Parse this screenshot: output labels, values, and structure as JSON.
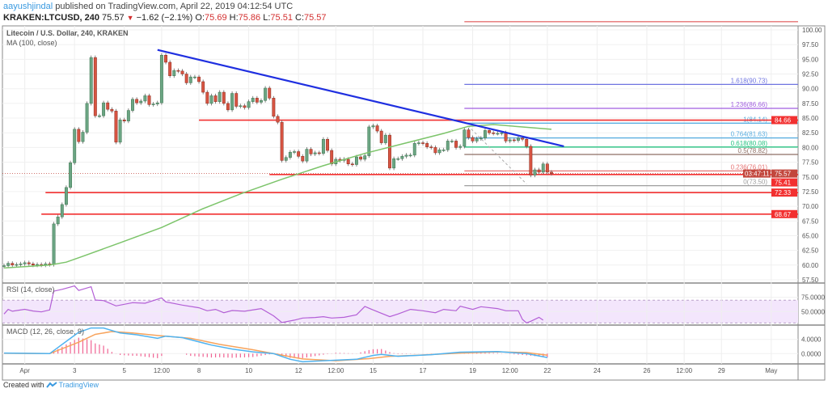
{
  "header": {
    "user": "aayushjindal",
    "published": " published on TradingView.com, April 22, 2019 04:12:54 UTC",
    "symbol": "KRAKEN:LTCUSD, 240",
    "last": "75.57",
    "change": "−1.62 (−2.1%)",
    "o_label": "O:",
    "o": "75.69",
    "h_label": "H:",
    "h": "75.86",
    "l_label": "L:",
    "l": "75.51",
    "c_label": "C:",
    "c": "75.57"
  },
  "footer": {
    "created_with": "Created with",
    "brand": "TradingView"
  },
  "colors": {
    "up": "#6ba583",
    "down": "#d75442",
    "ma": "#7cc46a",
    "trend": "#1f2fe0",
    "support": "#f23030",
    "rsi": "#b35fd6",
    "macd": "#4fb3f0",
    "signal": "#f7a35c",
    "hist": "#f06292"
  },
  "chart_data": {
    "type": "candlestick",
    "title": "Litecoin / U.S. Dollar, 240, KRAKEN",
    "indicator_label": "MA (100, close)",
    "start": "2019-03-31T04:00:00Z",
    "interval_hours": 4,
    "ylim": [
      57.5,
      100
    ],
    "y_ticks": [
      "100.00",
      "97.50",
      "95.00",
      "92.50",
      "90.00",
      "87.50",
      "85.00",
      "82.50",
      "80.00",
      "77.50",
      "75.00",
      "72.50",
      "70.00",
      "67.50",
      "65.00",
      "62.50",
      "60.00",
      "57.50"
    ],
    "x_ticks": [
      {
        "label": "Apr",
        "t": "2019-04-01T00:00:00Z"
      },
      {
        "label": "3",
        "t": "2019-04-03T00:00:00Z"
      },
      {
        "label": "5",
        "t": "2019-04-05T00:00:00Z"
      },
      {
        "label": "12:00",
        "t": "2019-04-06T12:00:00Z"
      },
      {
        "label": "8",
        "t": "2019-04-08T00:00:00Z"
      },
      {
        "label": "10",
        "t": "2019-04-10T00:00:00Z"
      },
      {
        "label": "12",
        "t": "2019-04-12T00:00:00Z"
      },
      {
        "label": "12:00",
        "t": "2019-04-13T12:00:00Z"
      },
      {
        "label": "15",
        "t": "2019-04-15T00:00:00Z"
      },
      {
        "label": "17",
        "t": "2019-04-17T00:00:00Z"
      },
      {
        "label": "19",
        "t": "2019-04-19T00:00:00Z"
      },
      {
        "label": "12:00",
        "t": "2019-04-20T12:00:00Z"
      },
      {
        "label": "22",
        "t": "2019-04-22T00:00:00Z"
      },
      {
        "label": "24",
        "t": "2019-04-24T00:00:00Z"
      },
      {
        "label": "26",
        "t": "2019-04-26T00:00:00Z"
      },
      {
        "label": "12:00",
        "t": "2019-04-27T12:00:00Z"
      },
      {
        "label": "29",
        "t": "2019-04-29T00:00:00Z"
      },
      {
        "label": "May",
        "t": "2019-05-01T00:00:00Z"
      }
    ],
    "close": [
      59.9,
      60.3,
      60.0,
      60.1,
      60.2,
      60.4,
      60.2,
      60.0,
      60.1,
      60.0,
      60.2,
      60.1,
      67.0,
      68.2,
      70.3,
      73.2,
      77.4,
      83.1,
      81.0,
      82.6,
      87.5,
      95.3,
      85.4,
      85.4,
      87.6,
      86.5,
      86.2,
      80.9,
      84.7,
      84.5,
      86.3,
      88.2,
      87.6,
      87.9,
      88.8,
      87.3,
      87.4,
      87.6,
      95.7,
      94.5,
      92.2,
      93.1,
      93.0,
      92.5,
      91.0,
      92.0,
      92.0,
      91.2,
      89.4,
      87.5,
      88.8,
      87.8,
      89.4,
      87.5,
      86.4,
      89.2,
      87.0,
      87.1,
      86.8,
      87.8,
      88.4,
      87.7,
      88.0,
      90.1,
      88.4,
      85.3,
      84.3,
      77.8,
      78.3,
      79.2,
      79.3,
      78.5,
      77.7,
      79.7,
      78.9,
      79.1,
      79.0,
      81.4,
      79.5,
      77.2,
      78.0,
      77.8,
      78.0,
      77.2,
      77.1,
      78.4,
      78.0,
      78.6,
      83.5,
      83.7,
      82.8,
      80.8,
      82.1,
      76.5,
      78.1,
      78.1,
      78.5,
      78.7,
      78.7,
      80.7,
      80.8,
      80.7,
      80.1,
      80.0,
      79.1,
      79.6,
      79.6,
      81.1,
      81.1,
      80.0,
      80.2,
      83.0,
      81.7,
      81.1,
      81.5,
      81.6,
      82.9,
      82.5,
      82.4,
      82.4,
      82.5,
      81.1,
      81.3,
      81.2,
      81.6,
      81.4,
      80.2,
      75.3,
      76.2,
      75.8,
      77.2,
      75.8,
      75.57
    ],
    "ma100": [
      [
        0,
        59.5
      ],
      [
        11,
        60.0
      ],
      [
        15,
        60.5
      ],
      [
        19,
        61.5
      ],
      [
        28,
        63.8
      ],
      [
        38,
        66.4
      ],
      [
        48,
        69.6
      ],
      [
        57,
        72.1
      ],
      [
        67,
        74.6
      ],
      [
        77,
        76.9
      ],
      [
        87,
        79.0
      ],
      [
        96,
        80.6
      ],
      [
        106,
        82.4
      ],
      [
        112,
        83.6
      ],
      [
        118,
        83.9
      ],
      [
        125,
        83.5
      ],
      [
        132,
        83.1
      ]
    ],
    "trendline": [
      [
        37,
        96.6
      ],
      [
        135,
        80.2
      ]
    ],
    "horizontal_lines": [
      {
        "value": 84.66,
        "label": "84.66",
        "from": 47
      },
      {
        "value": 75.41,
        "label": "75.41",
        "from": 64
      },
      {
        "value": 72.33,
        "label": "72.33",
        "from": 10
      },
      {
        "value": 68.67,
        "label": "68.67",
        "from": 9
      }
    ],
    "last_price": {
      "value": 75.57,
      "label": "75.57",
      "countdown": "03:47:11"
    },
    "fibonacci": {
      "from": 111,
      "diagonal": [
        [
          111,
          84.3
        ],
        [
          126,
          73.8
        ]
      ],
      "levels": [
        {
          "label": "0(73.50)",
          "value": 73.5,
          "color": "#9e9e9e"
        },
        {
          "label": "0.236(76.01)",
          "value": 76.01,
          "color": "#e57373"
        },
        {
          "label": "0.5(78.82)",
          "value": 78.82,
          "color": "#8d6e63"
        },
        {
          "label": "0.618(80.08)",
          "value": 80.08,
          "color": "#26c281"
        },
        {
          "label": "0.764(81.63)",
          "value": 81.63,
          "color": "#5aaee0"
        },
        {
          "label": "1(84.14)",
          "value": 84.14,
          "color": "#5aaee0"
        },
        {
          "label": "1.236(86.66)",
          "value": 86.66,
          "color": "#a05ee0"
        },
        {
          "label": "1.618(90.73)",
          "value": 90.73,
          "color": "#6f74e0"
        },
        {
          "label": "",
          "value": 101.4,
          "color": "#e57373"
        }
      ]
    },
    "rsi": {
      "label": "RSI (14, close)",
      "y_ticks": [
        "75.0000",
        "50.0000"
      ],
      "band": [
        30,
        70
      ],
      "values": [
        [
          0,
          45.8
        ],
        [
          1,
          53.8
        ],
        [
          2,
          50.5
        ],
        [
          5,
          54
        ],
        [
          7,
          51
        ],
        [
          9,
          49.5
        ],
        [
          11,
          52.8
        ],
        [
          12,
          85.8
        ],
        [
          14,
          89
        ],
        [
          17,
          95
        ],
        [
          18,
          87
        ],
        [
          21,
          93.5
        ],
        [
          22,
          70.3
        ],
        [
          24,
          69.3
        ],
        [
          27,
          60
        ],
        [
          31,
          65.6
        ],
        [
          34,
          64.6
        ],
        [
          38,
          74
        ],
        [
          39,
          67
        ],
        [
          43,
          61.3
        ],
        [
          47,
          56.6
        ],
        [
          49,
          51.4
        ],
        [
          51,
          53.8
        ],
        [
          53,
          48
        ],
        [
          55,
          51.9
        ],
        [
          58,
          50.5
        ],
        [
          62,
          55.2
        ],
        [
          65,
          42.5
        ],
        [
          67,
          30.7
        ],
        [
          70,
          35
        ],
        [
          72,
          38.7
        ],
        [
          75,
          39.6
        ],
        [
          77,
          41
        ],
        [
          79,
          38.7
        ],
        [
          82,
          40
        ],
        [
          85,
          44.3
        ],
        [
          87,
          59
        ],
        [
          89,
          52.8
        ],
        [
          93,
          41
        ],
        [
          95,
          45.8
        ],
        [
          98,
          53.8
        ],
        [
          101,
          51.4
        ],
        [
          104,
          48
        ],
        [
          106,
          53.8
        ],
        [
          109,
          51.4
        ],
        [
          110,
          59.4
        ],
        [
          113,
          53.8
        ],
        [
          115,
          58.5
        ],
        [
          119,
          55.2
        ],
        [
          121,
          51.4
        ],
        [
          124,
          51.4
        ],
        [
          125,
          36.3
        ],
        [
          126,
          30.2
        ],
        [
          127,
          33
        ],
        [
          129,
          40
        ],
        [
          130,
          35
        ]
      ]
    },
    "macd": {
      "label": "MACD (12, 26, close, 9)",
      "y_ticks": [
        "4.0000",
        "0.0000"
      ],
      "macd": [
        [
          0,
          0.15
        ],
        [
          11,
          0
        ],
        [
          16,
          4.3
        ],
        [
          18,
          6.0
        ],
        [
          21,
          7.2
        ],
        [
          24,
          7.2
        ],
        [
          28,
          5.8
        ],
        [
          32,
          5.3
        ],
        [
          37,
          4.3
        ],
        [
          39,
          4.9
        ],
        [
          43,
          4.5
        ],
        [
          50,
          2.4
        ],
        [
          55,
          1.3
        ],
        [
          60,
          0.5
        ],
        [
          65,
          0
        ],
        [
          69,
          -1.6
        ],
        [
          72,
          -2.3
        ],
        [
          77,
          -2.0
        ],
        [
          85,
          -1.6
        ],
        [
          89,
          -0.5
        ],
        [
          91,
          -0.2
        ],
        [
          95,
          -0.75
        ],
        [
          103,
          -0.3
        ],
        [
          110,
          0.4
        ],
        [
          119,
          0.6
        ],
        [
          126,
          0
        ],
        [
          131,
          -1.1
        ]
      ],
      "signal": [
        [
          0,
          0.1
        ],
        [
          11,
          0
        ],
        [
          18,
          3.2
        ],
        [
          22,
          5.4
        ],
        [
          26,
          6.2
        ],
        [
          31,
          5.8
        ],
        [
          37,
          5.1
        ],
        [
          45,
          4.3
        ],
        [
          52,
          2.6
        ],
        [
          60,
          1.1
        ],
        [
          66,
          -0.2
        ],
        [
          72,
          -1.5
        ],
        [
          80,
          -2.0
        ],
        [
          88,
          -1.4
        ],
        [
          93,
          -0.75
        ],
        [
          100,
          -0.45
        ],
        [
          110,
          0.15
        ],
        [
          119,
          0.5
        ],
        [
          126,
          0.3
        ],
        [
          131,
          -0.45
        ]
      ]
    }
  }
}
